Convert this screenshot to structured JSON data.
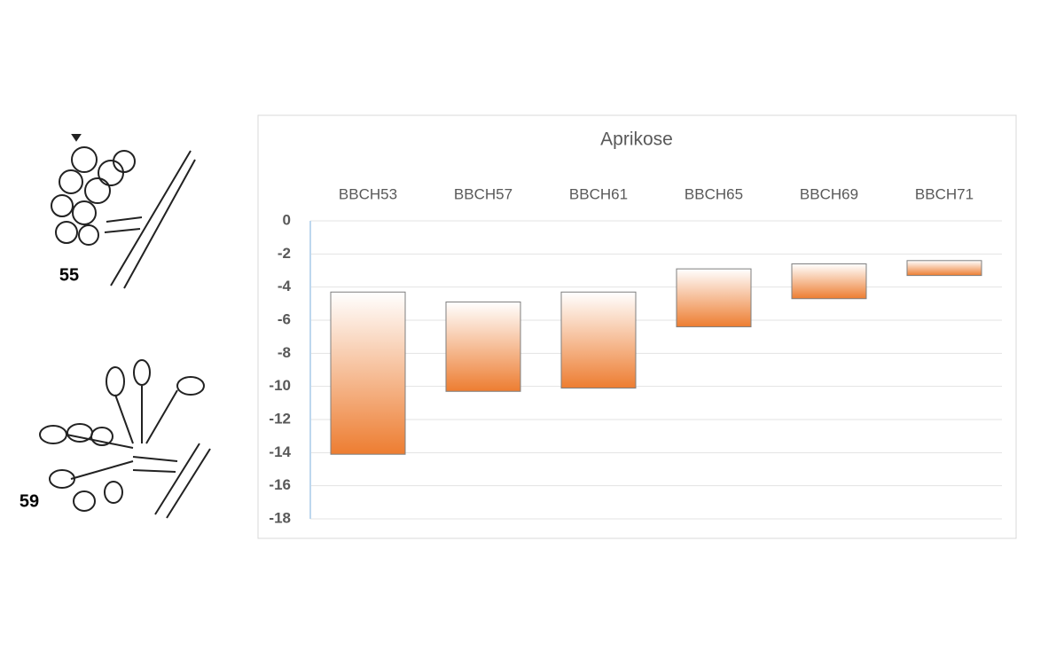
{
  "figures": [
    {
      "label": "55"
    },
    {
      "label": "59"
    }
  ],
  "chart_data": {
    "type": "floating-bar",
    "title": "Aprikose",
    "categories": [
      "BBCH53",
      "BBCH57",
      "BBCH61",
      "BBCH65",
      "BBCH69",
      "BBCH71"
    ],
    "high": [
      -4.3,
      -4.9,
      -4.3,
      -2.9,
      -2.6,
      -2.4
    ],
    "low": [
      -14.1,
      -10.3,
      -10.1,
      -6.4,
      -4.7,
      -3.3
    ],
    "color": "#ed7d31",
    "ylim": [
      -18,
      0
    ],
    "yticks": [
      0,
      -2,
      -4,
      -6,
      -8,
      -10,
      -12,
      -14,
      -16,
      -18
    ],
    "grid": true
  }
}
